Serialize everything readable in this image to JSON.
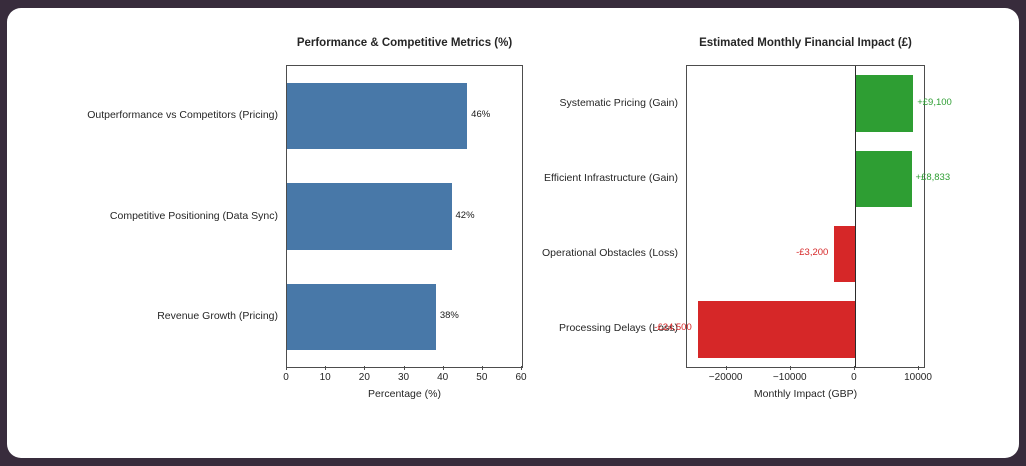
{
  "frame": {
    "background": "#382c3c",
    "card_background": "#ffffff"
  },
  "chart_data": [
    {
      "type": "bar",
      "orientation": "horizontal",
      "title": "Performance & Competitive Metrics (%)",
      "xlabel": "Percentage (%)",
      "categories": [
        "Outperformance vs Competitors (Pricing)",
        "Competitive Positioning (Data Sync)",
        "Revenue Growth (Pricing)"
      ],
      "values": [
        46,
        42,
        38
      ],
      "value_labels": [
        "46%",
        "42%",
        "38%"
      ],
      "bar_colors": [
        "#4878a8",
        "#4878a8",
        "#4878a8"
      ],
      "value_label_colors": [
        "#1a1a1a",
        "#1a1a1a",
        "#1a1a1a"
      ],
      "xlim": [
        0,
        60
      ],
      "xticks": [
        0,
        10,
        20,
        30,
        40,
        50,
        60
      ],
      "xtick_labels": [
        "0",
        "10",
        "20",
        "30",
        "40",
        "50",
        "60"
      ],
      "bar_height_frac": 0.66,
      "grid": false,
      "zero_line": false,
      "legend": null
    },
    {
      "type": "bar",
      "orientation": "horizontal",
      "title": "Estimated Monthly Financial Impact (£)",
      "xlabel": "Monthly Impact (GBP)",
      "categories": [
        "Systematic Pricing (Gain)",
        "Efficient Infrastructure (Gain)",
        "Operational Obstacles (Loss)",
        "Processing Delays (Loss)"
      ],
      "values": [
        9100,
        8833,
        -3200,
        -24500
      ],
      "value_labels": [
        "+£9,100",
        "+£8,833",
        "-£3,200",
        "-£24,500"
      ],
      "bar_colors": [
        "#2e9e33",
        "#2e9e33",
        "#d62728",
        "#d62728"
      ],
      "value_label_colors": [
        "#2e9e33",
        "#2e9e33",
        "#d62728",
        "#d62728"
      ],
      "xlim": [
        -26180,
        10780
      ],
      "xticks": [
        -20000,
        -10000,
        0,
        10000
      ],
      "xtick_labels": [
        "−20000",
        "−10000",
        "0",
        "10000"
      ],
      "bar_height_frac": 0.75,
      "grid": false,
      "zero_line": true,
      "legend": null
    }
  ]
}
